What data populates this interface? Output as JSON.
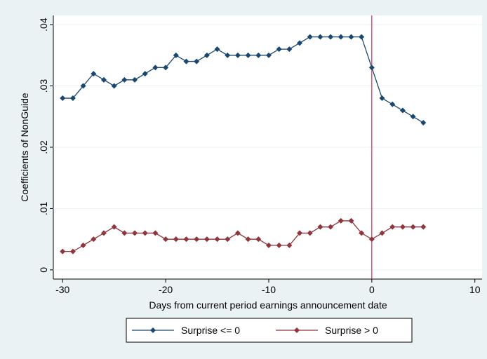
{
  "chart_data": {
    "type": "line",
    "x_label": "Days from current period earnings announcement date",
    "y_label": "Coefficients of NonGuide",
    "x": [
      -30,
      -29,
      -28,
      -27,
      -26,
      -25,
      -24,
      -23,
      -22,
      -21,
      -20,
      -19,
      -18,
      -17,
      -16,
      -15,
      -14,
      -13,
      -12,
      -11,
      -10,
      -9,
      -8,
      -7,
      -6,
      -5,
      -4,
      -3,
      -2,
      -1,
      0,
      1,
      2,
      3,
      4,
      5
    ],
    "series": [
      {
        "name": "Surprise <= 0",
        "color": "#1a476f",
        "values": [
          0.028,
          0.028,
          0.03,
          0.032,
          0.031,
          0.03,
          0.031,
          0.031,
          0.032,
          0.033,
          0.033,
          0.035,
          0.034,
          0.034,
          0.035,
          0.036,
          0.035,
          0.035,
          0.035,
          0.035,
          0.035,
          0.036,
          0.036,
          0.037,
          0.038,
          0.038,
          0.038,
          0.038,
          0.038,
          0.038,
          0.033,
          0.028,
          0.027,
          0.026,
          0.025,
          0.024
        ]
      },
      {
        "name": "Surprise > 0",
        "color": "#90353b",
        "values": [
          0.003,
          0.003,
          0.004,
          0.005,
          0.006,
          0.007,
          0.006,
          0.006,
          0.006,
          0.006,
          0.005,
          0.005,
          0.005,
          0.005,
          0.005,
          0.005,
          0.005,
          0.006,
          0.005,
          0.005,
          0.004,
          0.004,
          0.004,
          0.006,
          0.006,
          0.007,
          0.007,
          0.008,
          0.008,
          0.006,
          0.005,
          0.006,
          0.007,
          0.007,
          0.007,
          0.007
        ]
      }
    ],
    "xlim": [
      -30.9,
      10.7
    ],
    "xticks": [
      -30,
      -20,
      -10,
      0,
      10
    ],
    "ylim": [
      -0.0015,
      0.0415
    ],
    "yticks": [
      0,
      {
        "value": 0.01,
        "label": ".01"
      },
      {
        "value": 0.02,
        "label": ".02"
      },
      {
        "value": 0.03,
        "label": ".03"
      },
      {
        "value": 0.04,
        "label": ".04"
      }
    ],
    "grid": true,
    "xline": 0,
    "xline_color": "#c10534",
    "legend": "bottom"
  }
}
